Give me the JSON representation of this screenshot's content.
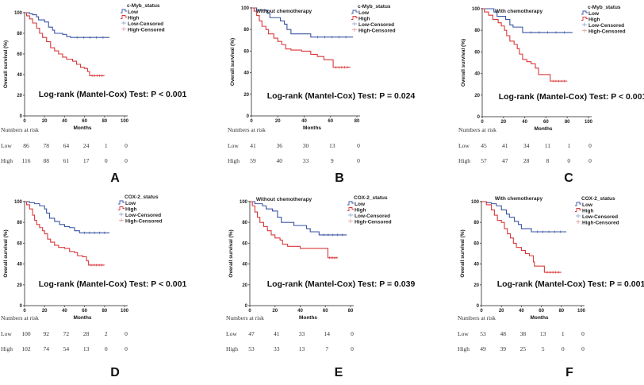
{
  "chart_data": [
    {
      "type": "line",
      "panel": "A",
      "title": "",
      "legend_title": "c-Myb_status",
      "legend": [
        "Low",
        "High",
        "Low-Censored",
        "High-Censored"
      ],
      "xlabel": "Months",
      "ylabel": "Overall survival (%)",
      "xlim": [
        0,
        100
      ],
      "ylim": [
        0,
        100
      ],
      "xticks": [
        0,
        20,
        40,
        60,
        80,
        100
      ],
      "yticks": [
        0,
        20,
        40,
        60,
        80,
        100
      ],
      "annotation": "Log-rank (Mantel-Cox) Test: P < 0.001",
      "series": [
        {
          "name": "Low",
          "color": "#3a55a4",
          "points": [
            [
              0,
              100
            ],
            [
              5,
              99
            ],
            [
              8,
              98
            ],
            [
              12,
              96
            ],
            [
              14,
              93
            ],
            [
              20,
              91
            ],
            [
              24,
              86
            ],
            [
              28,
              83
            ],
            [
              30,
              80
            ],
            [
              38,
              79
            ],
            [
              42,
              77
            ],
            [
              46,
              76
            ],
            [
              85,
              76
            ]
          ]
        },
        {
          "name": "High",
          "color": "#d9383a",
          "points": [
            [
              0,
              100
            ],
            [
              2,
              97
            ],
            [
              5,
              94
            ],
            [
              8,
              90
            ],
            [
              12,
              85
            ],
            [
              15,
              80
            ],
            [
              18,
              76
            ],
            [
              22,
              72
            ],
            [
              26,
              66
            ],
            [
              30,
              63
            ],
            [
              34,
              60
            ],
            [
              38,
              57
            ],
            [
              42,
              55
            ],
            [
              48,
              53
            ],
            [
              52,
              50
            ],
            [
              56,
              47
            ],
            [
              60,
              46
            ],
            [
              63,
              43
            ],
            [
              65,
              39
            ],
            [
              80,
              39
            ]
          ]
        }
      ],
      "risk_table": {
        "label": "Numbers at risk",
        "rows": [
          {
            "group": "Low",
            "values": [
              "86",
              "78",
              "64",
              "24",
              "1",
              "0"
            ]
          },
          {
            "group": "High",
            "values": [
              "116",
              "88",
              "61",
              "17",
              "0",
              "0"
            ]
          }
        ]
      }
    },
    {
      "type": "line",
      "panel": "B",
      "title": "Without chemotherapy",
      "legend_title": "c-Myb_status",
      "legend": [
        "Low",
        "High",
        "Low-Censored",
        "High-Censored"
      ],
      "xlabel": "Months",
      "ylabel": "Overall survival (%)",
      "xlim": [
        0,
        80
      ],
      "ylim": [
        0,
        100
      ],
      "xticks": [
        0,
        20,
        40,
        60,
        80
      ],
      "yticks": [
        0,
        20,
        40,
        60,
        80,
        100
      ],
      "annotation": "Log-rank (Mantel-Cox) Test: P = 0.024",
      "series": [
        {
          "name": "Low",
          "color": "#3a55a4",
          "points": [
            [
              0,
              100
            ],
            [
              4,
              98
            ],
            [
              12,
              95
            ],
            [
              14,
              91
            ],
            [
              22,
              88
            ],
            [
              25,
              85
            ],
            [
              27,
              80
            ],
            [
              30,
              76
            ],
            [
              45,
              73
            ],
            [
              77,
              73
            ]
          ]
        },
        {
          "name": "High",
          "color": "#d9383a",
          "points": [
            [
              0,
              100
            ],
            [
              2,
              97
            ],
            [
              4,
              93
            ],
            [
              6,
              88
            ],
            [
              8,
              83
            ],
            [
              11,
              80
            ],
            [
              13,
              76
            ],
            [
              17,
              72
            ],
            [
              20,
              69
            ],
            [
              23,
              66
            ],
            [
              26,
              62
            ],
            [
              30,
              61
            ],
            [
              38,
              60
            ],
            [
              45,
              57
            ],
            [
              50,
              55
            ],
            [
              55,
              52
            ],
            [
              62,
              45
            ],
            [
              75,
              45
            ]
          ]
        }
      ],
      "risk_table": {
        "label": "Numbers at risk",
        "rows": [
          {
            "group": "Low",
            "values": [
              "41",
              "36",
              "30",
              "13",
              "0"
            ]
          },
          {
            "group": "High",
            "values": [
              "59",
              "40",
              "33",
              "9",
              "0"
            ]
          }
        ]
      }
    },
    {
      "type": "line",
      "panel": "C",
      "title": "With chemotherapy",
      "legend_title": "c-Myb_status",
      "legend": [
        "Low",
        "High",
        "Low-Censored",
        "High-Censored"
      ],
      "xlabel": "Months",
      "ylabel": "Overall survival (%)",
      "xlim": [
        0,
        100
      ],
      "ylim": [
        0,
        100
      ],
      "xticks": [
        0,
        20,
        40,
        60,
        80,
        100
      ],
      "yticks": [
        0,
        20,
        40,
        60,
        80,
        100
      ],
      "annotation": "Log-rank (Mantel-Cox) Test: P < 0.001",
      "series": [
        {
          "name": "Low",
          "color": "#3a55a4",
          "points": [
            [
              0,
              100
            ],
            [
              11,
              97
            ],
            [
              14,
              93
            ],
            [
              22,
              90
            ],
            [
              26,
              85
            ],
            [
              29,
              83
            ],
            [
              38,
              78
            ],
            [
              85,
              78
            ]
          ]
        },
        {
          "name": "High",
          "color": "#d9383a",
          "points": [
            [
              0,
              100
            ],
            [
              2,
              97
            ],
            [
              6,
              94
            ],
            [
              10,
              90
            ],
            [
              15,
              87
            ],
            [
              18,
              84
            ],
            [
              21,
              80
            ],
            [
              23,
              75
            ],
            [
              26,
              70
            ],
            [
              30,
              67
            ],
            [
              33,
              63
            ],
            [
              35,
              58
            ],
            [
              38,
              53
            ],
            [
              42,
              51
            ],
            [
              46,
              49
            ],
            [
              50,
              45
            ],
            [
              53,
              39
            ],
            [
              64,
              33
            ],
            [
              80,
              33
            ]
          ]
        }
      ],
      "risk_table": {
        "label": "Numbers at risk",
        "rows": [
          {
            "group": "Low",
            "values": [
              "45",
              "41",
              "34",
              "11",
              "1",
              "0"
            ]
          },
          {
            "group": "High",
            "values": [
              "57",
              "47",
              "28",
              "8",
              "0",
              "0"
            ]
          }
        ]
      }
    },
    {
      "type": "line",
      "panel": "D",
      "title": "",
      "legend_title": "COX-2_status",
      "legend": [
        "Low",
        "High",
        "Low-Censored",
        "High-Censored"
      ],
      "xlabel": "Months",
      "ylabel": "Overall survival (%)",
      "xlim": [
        0,
        100
      ],
      "ylim": [
        0,
        100
      ],
      "xticks": [
        0,
        20,
        40,
        60,
        80,
        100
      ],
      "yticks": [
        0,
        20,
        40,
        60,
        80,
        100
      ],
      "annotation": "Log-rank (Mantel-Cox) Test: P < 0.001",
      "series": [
        {
          "name": "Low",
          "color": "#3a55a4",
          "points": [
            [
              0,
              100
            ],
            [
              5,
              99
            ],
            [
              10,
              98
            ],
            [
              15,
              96
            ],
            [
              20,
              93
            ],
            [
              22,
              89
            ],
            [
              25,
              84
            ],
            [
              30,
              81
            ],
            [
              35,
              78
            ],
            [
              40,
              76
            ],
            [
              45,
              75
            ],
            [
              50,
              72
            ],
            [
              55,
              70
            ],
            [
              85,
              70
            ]
          ]
        },
        {
          "name": "High",
          "color": "#d9383a",
          "points": [
            [
              0,
              100
            ],
            [
              2,
              97
            ],
            [
              5,
              93
            ],
            [
              8,
              87
            ],
            [
              10,
              82
            ],
            [
              12,
              78
            ],
            [
              15,
              75
            ],
            [
              18,
              72
            ],
            [
              20,
              69
            ],
            [
              23,
              64
            ],
            [
              26,
              61
            ],
            [
              30,
              58
            ],
            [
              34,
              56
            ],
            [
              40,
              55
            ],
            [
              45,
              52
            ],
            [
              50,
              51
            ],
            [
              53,
              48
            ],
            [
              58,
              47
            ],
            [
              62,
              43
            ],
            [
              64,
              39
            ],
            [
              80,
              39
            ]
          ]
        }
      ],
      "risk_table": {
        "label": "Numbers at risk",
        "rows": [
          {
            "group": "Low",
            "values": [
              "100",
              "92",
              "72",
              "28",
              "2",
              "0"
            ]
          },
          {
            "group": "High",
            "values": [
              "102",
              "74",
              "54",
              "13",
              "0",
              "0"
            ]
          }
        ]
      }
    },
    {
      "type": "line",
      "panel": "E",
      "title": "Without chemotherapy",
      "legend_title": "COX-2_status",
      "legend": [
        "Low",
        "High",
        "Low-Censored",
        "High-Censored"
      ],
      "xlabel": "Months",
      "ylabel": "Overall survival (%)",
      "xlim": [
        0,
        80
      ],
      "ylim": [
        0,
        100
      ],
      "xticks": [
        0,
        20,
        40,
        60,
        80
      ],
      "yticks": [
        0,
        20,
        40,
        60,
        80,
        100
      ],
      "annotation": "Log-rank (Mantel-Cox) Test: P = 0.039",
      "series": [
        {
          "name": "Low",
          "color": "#3a55a4",
          "points": [
            [
              0,
              100
            ],
            [
              4,
              98
            ],
            [
              10,
              96
            ],
            [
              13,
              93
            ],
            [
              18,
              91
            ],
            [
              22,
              85
            ],
            [
              25,
              80
            ],
            [
              35,
              77
            ],
            [
              45,
              74
            ],
            [
              48,
              71
            ],
            [
              55,
              68
            ],
            [
              77,
              68
            ]
          ]
        },
        {
          "name": "High",
          "color": "#d9383a",
          "points": [
            [
              0,
              100
            ],
            [
              2,
              96
            ],
            [
              4,
              90
            ],
            [
              6,
              85
            ],
            [
              8,
              80
            ],
            [
              11,
              76
            ],
            [
              14,
              72
            ],
            [
              17,
              68
            ],
            [
              20,
              65
            ],
            [
              24,
              63
            ],
            [
              26,
              59
            ],
            [
              30,
              57
            ],
            [
              40,
              55
            ],
            [
              62,
              46
            ],
            [
              70,
              46
            ]
          ]
        }
      ],
      "risk_table": {
        "label": "Numbers at risk",
        "rows": [
          {
            "group": "Low",
            "values": [
              "47",
              "41",
              "33",
              "14",
              "0"
            ]
          },
          {
            "group": "High",
            "values": [
              "53",
              "33",
              "13",
              "7",
              "0"
            ]
          }
        ]
      }
    },
    {
      "type": "line",
      "panel": "F",
      "title": "With chemotherapy",
      "legend_title": "COX-2_status",
      "legend": [
        "Low",
        "High",
        "Low-Censored",
        "High-Censored"
      ],
      "xlabel": "Months",
      "ylabel": "Overall survival (%)",
      "xlim": [
        0,
        100
      ],
      "ylim": [
        0,
        100
      ],
      "xticks": [
        0,
        20,
        40,
        60,
        80,
        100
      ],
      "yticks": [
        0,
        20,
        40,
        60,
        80,
        100
      ],
      "annotation": "Log-rank (Mantel-Cox) Test: P = 0.001",
      "series": [
        {
          "name": "Low",
          "color": "#3a55a4",
          "points": [
            [
              0,
              100
            ],
            [
              5,
              99
            ],
            [
              10,
              98
            ],
            [
              15,
              96
            ],
            [
              20,
              92
            ],
            [
              25,
              88
            ],
            [
              28,
              85
            ],
            [
              33,
              81
            ],
            [
              37,
              78
            ],
            [
              40,
              74
            ],
            [
              50,
              71
            ],
            [
              85,
              71
            ]
          ]
        },
        {
          "name": "High",
          "color": "#d9383a",
          "points": [
            [
              0,
              100
            ],
            [
              5,
              97
            ],
            [
              10,
              92
            ],
            [
              13,
              87
            ],
            [
              16,
              82
            ],
            [
              20,
              80
            ],
            [
              23,
              74
            ],
            [
              26,
              69
            ],
            [
              29,
              65
            ],
            [
              32,
              60
            ],
            [
              35,
              56
            ],
            [
              40,
              53
            ],
            [
              44,
              50
            ],
            [
              48,
              48
            ],
            [
              52,
              42
            ],
            [
              53,
              38
            ],
            [
              63,
              32
            ],
            [
              80,
              32
            ]
          ]
        }
      ],
      "risk_table": {
        "label": "Numbers at risk",
        "rows": [
          {
            "group": "Low",
            "values": [
              "53",
              "48",
              "38",
              "13",
              "1",
              "0"
            ]
          },
          {
            "group": "High",
            "values": [
              "49",
              "39",
              "25",
              "5",
              "0",
              "0"
            ]
          }
        ]
      }
    }
  ]
}
